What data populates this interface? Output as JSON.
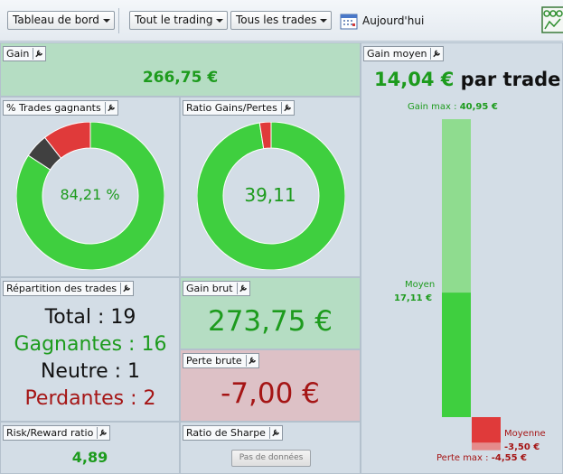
{
  "toolbar": {
    "dashboard": "Tableau de bord",
    "trading_filter": "Tout le trading",
    "trades_filter": "Tous les trades",
    "today": "Aujourd'hui"
  },
  "panels": {
    "gain": {
      "title": "Gain",
      "value": "266,75 €"
    },
    "win_rate": {
      "title": "% Trades gagnants",
      "value": "84,21 %"
    },
    "ratio": {
      "title": "Ratio Gains/Pertes",
      "value": "39,11"
    },
    "repartition": {
      "title": "Répartition des trades",
      "total_label": "Total",
      "total": "19",
      "win_label": "Gagnantes",
      "win": "16",
      "neutral_label": "Neutre",
      "neutral": "1",
      "loss_label": "Perdantes",
      "loss": "2"
    },
    "gross_gain": {
      "title": "Gain brut",
      "value": "273,75 €"
    },
    "gross_loss": {
      "title": "Perte brute",
      "value": "-7,00 €"
    },
    "risk_reward": {
      "title": "Risk/Reward ratio",
      "value": "4,89"
    },
    "sharpe": {
      "title": "Ratio de Sharpe",
      "value": "Pas de données"
    },
    "avg_gain": {
      "title": "Gain moyen",
      "value": "14,04 €",
      "suffix": "par trade",
      "max_gain_label": "Gain max :",
      "max_gain": "40,95 €",
      "mean_label": "Moyenne",
      "mean_gain_label": "Moyen",
      "mean_gain": "17,11 €",
      "mean_loss": "-3,50 €",
      "max_loss_label": "Perte max :",
      "max_loss": "-4,55 €"
    }
  },
  "chart_data": [
    {
      "type": "pie",
      "categories": [
        "Gagnantes",
        "Neutre",
        "Perdantes"
      ],
      "values": [
        16,
        1,
        2
      ],
      "colors": [
        "#3fcf3f",
        "#404040",
        "#e03a3a"
      ]
    },
    {
      "type": "pie",
      "categories": [
        "Gains",
        "Pertes"
      ],
      "values": [
        273.75,
        7.0
      ],
      "colors": [
        "#3fcf3f",
        "#e03a3a"
      ]
    },
    {
      "type": "bar",
      "categories": [
        "Gain max",
        "Moyen",
        "Moyenne",
        "Perte max"
      ],
      "values": [
        40.95,
        17.11,
        -3.5,
        -4.55
      ],
      "colors": [
        "#8fdc8f",
        "#3fcf3f",
        "#e03a3a",
        "#e58b8b"
      ]
    }
  ],
  "colors": {
    "green": "#1d9b1d",
    "red": "#a51515",
    "green_panel": "#b5ddc3",
    "red_panel": "#ddc1c6"
  }
}
